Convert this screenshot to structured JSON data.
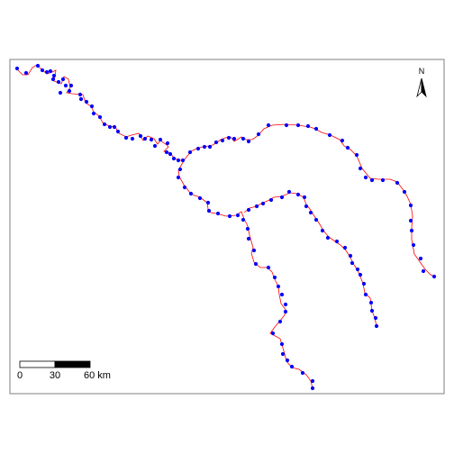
{
  "north_arrow": {
    "label": "N"
  },
  "scale_bar": {
    "ticks": [
      "0",
      "30",
      "60 km"
    ]
  },
  "colors": {
    "river_line": "#ff0000",
    "station_point": "#0000ff",
    "frame": "#7f7f7f",
    "scale_fill": "#000000"
  },
  "layers": [
    {
      "name": "river-line",
      "kind": "polyline"
    },
    {
      "name": "station-points",
      "kind": "points"
    }
  ]
}
